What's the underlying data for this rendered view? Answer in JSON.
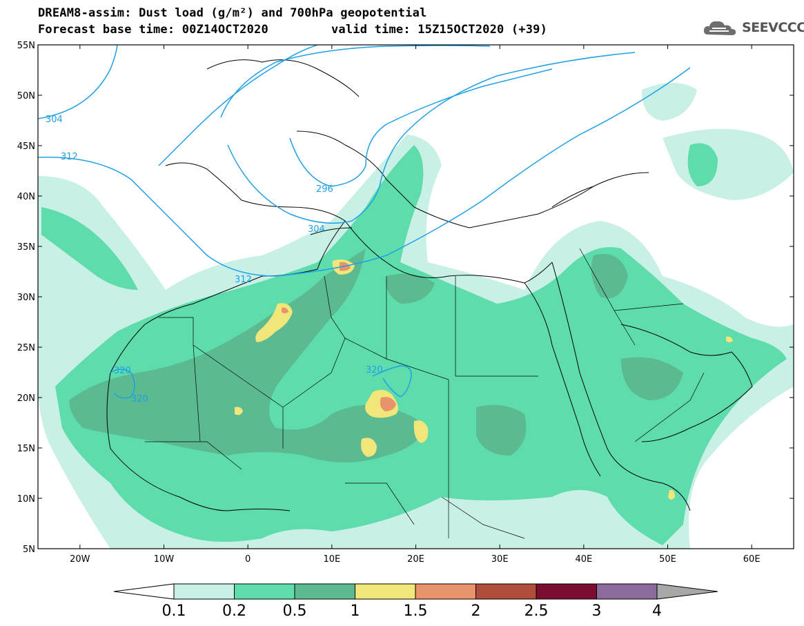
{
  "header": {
    "title_line1": "DREAM8-assim: Dust load (g/m²) and 700hPa geopotential",
    "title_line2_left": "Forecast base time: 00Z14OCT2020",
    "title_line2_right": "valid time: 15Z15OCT2020 (+39)",
    "logo_text": "SEEVCCC"
  },
  "map": {
    "lat_labels": [
      "55N",
      "50N",
      "45N",
      "40N",
      "35N",
      "30N",
      "25N",
      "20N",
      "15N",
      "10N",
      "5N"
    ],
    "lat_values": [
      55,
      50,
      45,
      40,
      35,
      30,
      25,
      20,
      15,
      10,
      5
    ],
    "lon_labels": [
      "20W",
      "10W",
      "0",
      "10E",
      "20E",
      "30E",
      "40E",
      "50E",
      "60E"
    ],
    "lon_values": [
      -20,
      -10,
      0,
      10,
      20,
      30,
      40,
      50,
      60
    ],
    "lon_range": [
      -25,
      65
    ],
    "lat_range": [
      5,
      55
    ],
    "contour_labels": [
      "304",
      "312",
      "296",
      "304",
      "312",
      "320",
      "320",
      "320"
    ],
    "contour_color": "#1fa0e6"
  },
  "colorbar": {
    "labels": [
      "0.1",
      "0.2",
      "0.5",
      "1",
      "1.5",
      "2",
      "2.5",
      "3",
      "4"
    ],
    "colors": [
      "#c8f0e6",
      "#5fdcac",
      "#5bba90",
      "#f0e67a",
      "#e8936a",
      "#ae4e3a",
      "#7a0c30",
      "#8c6a9c"
    ],
    "under_color": "#ffffff",
    "over_color": "#a8a8a8"
  }
}
